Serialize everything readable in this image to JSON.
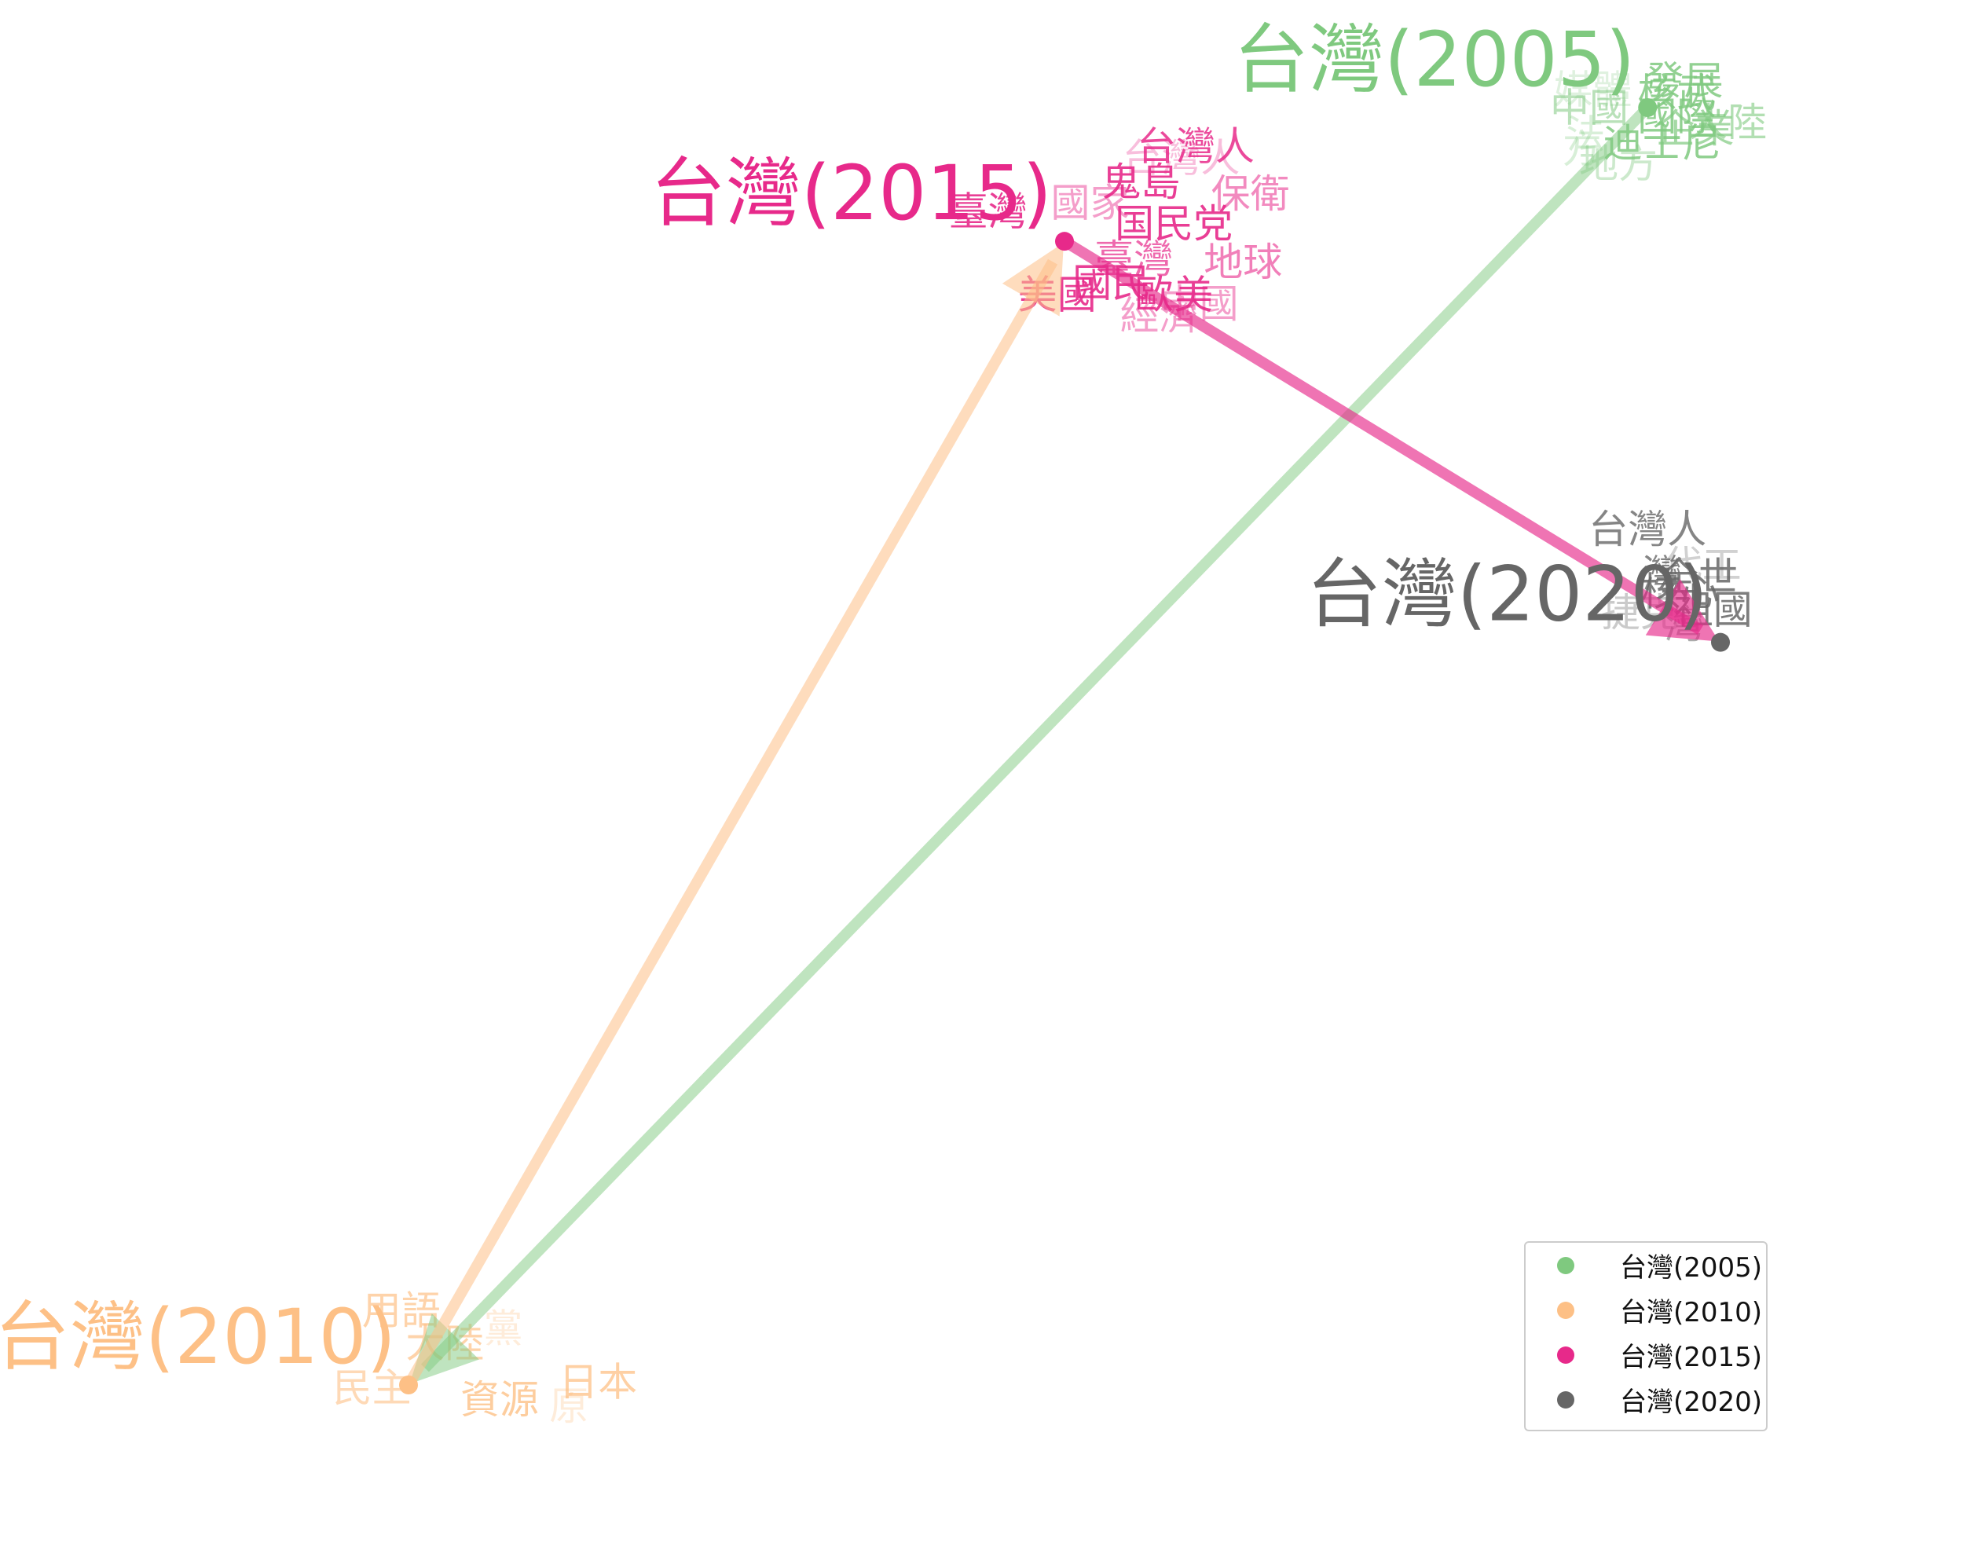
{
  "chart_data": {
    "type": "scatter",
    "grid": false,
    "legend_position": "lower-right",
    "series": [
      {
        "name": "台灣(2005)",
        "color": "#7fc97f",
        "anchor": [
          2.2,
          1.7
        ],
        "neighbors": [
          {
            "word": "發展",
            "x": 2.3,
            "y": 1.78,
            "alpha": 0.85
          },
          {
            "word": "核武",
            "x": 2.28,
            "y": 1.74,
            "alpha": 0.85
          },
          {
            "word": "媒體",
            "x": 2.05,
            "y": 1.75,
            "alpha": 0.25
          },
          {
            "word": "中國",
            "x": 2.04,
            "y": 1.69,
            "alpha": 0.55
          },
          {
            "word": "國際",
            "x": 2.28,
            "y": 1.66,
            "alpha": 0.85
          },
          {
            "word": "大陸",
            "x": 2.42,
            "y": 1.64,
            "alpha": 0.6
          },
          {
            "word": "企業",
            "x": 2.33,
            "y": 1.62,
            "alpha": 0.7
          },
          {
            "word": "法",
            "x": 2.03,
            "y": 1.6,
            "alpha": 0.3
          },
          {
            "word": "迪士尼",
            "x": 2.24,
            "y": 1.57,
            "alpha": 0.85
          },
          {
            "word": "方",
            "x": 2.02,
            "y": 1.55,
            "alpha": 0.3
          },
          {
            "word": "地方",
            "x": 2.12,
            "y": 1.5,
            "alpha": 0.4
          }
        ]
      },
      {
        "name": "台灣(2010)",
        "color": "#fdc086",
        "anchor": [
          -1.2,
          -2.6
        ],
        "neighbors": [
          {
            "word": "用語",
            "x": -1.22,
            "y": -2.36,
            "alpha": 0.7
          },
          {
            "word": "大陸",
            "x": -1.1,
            "y": -2.47,
            "alpha": 0.7
          },
          {
            "word": "黨",
            "x": -0.94,
            "y": -2.42,
            "alpha": 0.3
          },
          {
            "word": "日本",
            "x": -0.68,
            "y": -2.6,
            "alpha": 0.75
          },
          {
            "word": "民主",
            "x": -1.3,
            "y": -2.62,
            "alpha": 0.6
          },
          {
            "word": "資源",
            "x": -0.95,
            "y": -2.66,
            "alpha": 0.8
          },
          {
            "word": "原",
            "x": -0.76,
            "y": -2.68,
            "alpha": 0.3
          }
        ]
      },
      {
        "name": "台灣(2015)",
        "color": "#e7298a",
        "anchor": [
          0.6,
          1.25
        ],
        "neighbors": [
          {
            "word": "台灣人",
            "x": 0.96,
            "y": 1.56,
            "alpha": 0.85
          },
          {
            "word": "台灣人",
            "x": 0.92,
            "y": 1.52,
            "alpha": 0.3
          },
          {
            "word": "鬼島",
            "x": 0.81,
            "y": 1.44,
            "alpha": 0.9
          },
          {
            "word": "保衛",
            "x": 1.11,
            "y": 1.4,
            "alpha": 0.55
          },
          {
            "word": "國家",
            "x": 0.67,
            "y": 1.37,
            "alpha": 0.45
          },
          {
            "word": "臺灣",
            "x": 0.39,
            "y": 1.34,
            "alpha": 0.9
          },
          {
            "word": "国民党",
            "x": 0.9,
            "y": 1.3,
            "alpha": 0.9
          },
          {
            "word": "臺灣",
            "x": 0.79,
            "y": 1.18,
            "alpha": 0.7
          },
          {
            "word": "地球",
            "x": 1.09,
            "y": 1.17,
            "alpha": 0.6
          },
          {
            "word": "國民",
            "x": 0.73,
            "y": 1.1,
            "alpha": 0.9
          },
          {
            "word": "美國",
            "x": 0.58,
            "y": 1.06,
            "alpha": 0.9
          },
          {
            "word": "歐美",
            "x": 0.9,
            "y": 1.06,
            "alpha": 0.9
          },
          {
            "word": "中國",
            "x": 0.97,
            "y": 1.03,
            "alpha": 0.45
          },
          {
            "word": "經濟",
            "x": 0.86,
            "y": 0.99,
            "alpha": 0.45
          }
        ]
      },
      {
        "name": "台灣(2020)",
        "color": "#666666",
        "anchor": [
          2.4,
          -0.1
        ],
        "neighbors": [
          {
            "word": "台灣人",
            "x": 2.2,
            "y": 0.27,
            "alpha": 0.8
          },
          {
            "word": "代工",
            "x": 2.35,
            "y": 0.15,
            "alpha": 0.3
          },
          {
            "word": "灣",
            "x": 2.24,
            "y": 0.12,
            "alpha": 0.8
          },
          {
            "word": "全世",
            "x": 2.34,
            "y": 0.11,
            "alpha": 0.85
          },
          {
            "word": "核心",
            "x": 2.29,
            "y": 0.06,
            "alpha": 0.85
          },
          {
            "word": "祖國",
            "x": 2.38,
            "y": 0.0,
            "alpha": 0.85
          },
          {
            "word": "捷克",
            "x": 2.18,
            "y": -0.01,
            "alpha": 0.35
          },
          {
            "word": "灣",
            "x": 2.3,
            "y": -0.05,
            "alpha": 0.55
          }
        ]
      }
    ],
    "arrows": [
      {
        "from": "台灣(2005)",
        "to": "台灣(2010)",
        "color": "#7fc97f"
      },
      {
        "from": "台灣(2010)",
        "to": "台灣(2015)",
        "color": "#fdc086"
      },
      {
        "from": "台灣(2015)",
        "to": "台灣(2020)",
        "color": "#e7298a"
      }
    ]
  }
}
